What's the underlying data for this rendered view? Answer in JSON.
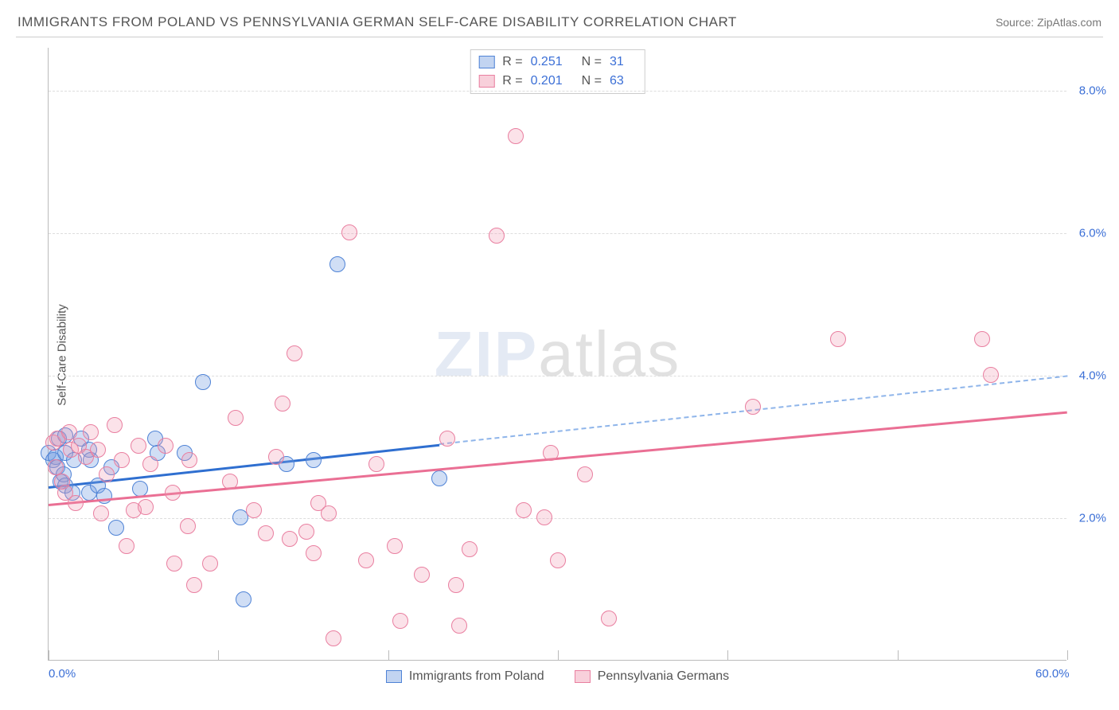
{
  "title": "IMMIGRANTS FROM POLAND VS PENNSYLVANIA GERMAN SELF-CARE DISABILITY CORRELATION CHART",
  "source_label": "Source: ZipAtlas.com",
  "ylabel": "Self-Care Disability",
  "watermark_a": "ZIP",
  "watermark_b": "atlas",
  "chart": {
    "type": "scatter",
    "xlim": [
      0,
      60
    ],
    "ylim": [
      0,
      8.6
    ],
    "x_ticks": [
      0,
      10,
      20,
      30,
      40,
      50,
      60
    ],
    "x_tick_labels": {
      "0": "0.0%",
      "60": "60.0%"
    },
    "y_ticks": [
      2,
      4,
      6,
      8
    ],
    "y_tick_labels": {
      "2": "2.0%",
      "4": "4.0%",
      "6": "6.0%",
      "8": "8.0%"
    },
    "background_color": "#ffffff",
    "grid_color": "#dddddd",
    "axis_color": "#bbbbbb",
    "tick_label_color": "#3b6fd6",
    "marker_radius": 10,
    "series": [
      {
        "name": "Immigrants from Poland",
        "key": "blue",
        "fill": "rgba(120,160,225,0.35)",
        "stroke": "#4f83d6",
        "r_label": "R =",
        "r_value": "0.251",
        "n_label": "N =",
        "n_value": "31",
        "trend": {
          "y_at_x0": 2.45,
          "y_at_x60": 4.0,
          "solid_until_x": 23,
          "solid_color": "#2f6fd0",
          "dash_color": "#8fb5ea"
        },
        "points": [
          [
            0.0,
            2.9
          ],
          [
            0.3,
            2.8
          ],
          [
            0.4,
            2.85
          ],
          [
            0.5,
            2.7
          ],
          [
            0.6,
            3.1
          ],
          [
            0.7,
            2.5
          ],
          [
            0.9,
            2.6
          ],
          [
            1.0,
            2.9
          ],
          [
            1.0,
            2.45
          ],
          [
            1.0,
            3.15
          ],
          [
            1.4,
            2.35
          ],
          [
            1.5,
            2.8
          ],
          [
            1.9,
            3.1
          ],
          [
            2.4,
            2.35
          ],
          [
            2.4,
            2.95
          ],
          [
            2.5,
            2.8
          ],
          [
            2.9,
            2.45
          ],
          [
            3.3,
            2.3
          ],
          [
            3.7,
            2.7
          ],
          [
            4.0,
            1.85
          ],
          [
            5.4,
            2.4
          ],
          [
            6.3,
            3.1
          ],
          [
            6.4,
            2.9
          ],
          [
            8.0,
            2.9
          ],
          [
            9.1,
            3.9
          ],
          [
            11.3,
            2.0
          ],
          [
            11.5,
            0.85
          ],
          [
            14.0,
            2.75
          ],
          [
            15.6,
            2.8
          ],
          [
            17.0,
            5.55
          ],
          [
            23.0,
            2.55
          ]
        ]
      },
      {
        "name": "Pennsylvania Germans",
        "key": "pink",
        "fill": "rgba(240,150,175,0.28)",
        "stroke": "#e97fa0",
        "r_label": "R =",
        "r_value": "0.201",
        "n_label": "N =",
        "n_value": "63",
        "trend": {
          "y_at_x0": 2.2,
          "y_at_x60": 3.5,
          "solid_until_x": 60,
          "solid_color": "#ea6f94"
        },
        "points": [
          [
            0.3,
            3.05
          ],
          [
            0.4,
            2.7
          ],
          [
            0.5,
            3.1
          ],
          [
            0.8,
            2.5
          ],
          [
            1.0,
            2.35
          ],
          [
            1.2,
            3.2
          ],
          [
            1.3,
            2.95
          ],
          [
            1.6,
            2.2
          ],
          [
            1.8,
            3.0
          ],
          [
            2.2,
            2.85
          ],
          [
            2.5,
            3.2
          ],
          [
            2.9,
            2.95
          ],
          [
            3.1,
            2.05
          ],
          [
            3.4,
            2.6
          ],
          [
            3.9,
            3.3
          ],
          [
            4.3,
            2.8
          ],
          [
            4.6,
            1.6
          ],
          [
            5.0,
            2.1
          ],
          [
            5.3,
            3.0
          ],
          [
            5.7,
            2.15
          ],
          [
            6.0,
            2.75
          ],
          [
            6.9,
            3.0
          ],
          [
            7.3,
            2.35
          ],
          [
            7.4,
            1.35
          ],
          [
            8.2,
            1.88
          ],
          [
            8.3,
            2.8
          ],
          [
            8.6,
            1.05
          ],
          [
            9.5,
            1.35
          ],
          [
            10.7,
            2.5
          ],
          [
            11.0,
            3.4
          ],
          [
            12.1,
            2.1
          ],
          [
            12.8,
            1.78
          ],
          [
            13.4,
            2.85
          ],
          [
            13.8,
            3.6
          ],
          [
            14.2,
            1.7
          ],
          [
            14.5,
            4.3
          ],
          [
            15.2,
            1.8
          ],
          [
            15.6,
            1.5
          ],
          [
            15.9,
            2.2
          ],
          [
            16.5,
            2.05
          ],
          [
            16.8,
            0.3
          ],
          [
            17.7,
            6.0
          ],
          [
            18.7,
            1.4
          ],
          [
            19.3,
            2.75
          ],
          [
            20.4,
            1.6
          ],
          [
            20.7,
            0.55
          ],
          [
            22.0,
            1.2
          ],
          [
            23.5,
            3.1
          ],
          [
            24.0,
            1.05
          ],
          [
            24.2,
            0.48
          ],
          [
            24.8,
            1.55
          ],
          [
            26.4,
            5.95
          ],
          [
            27.5,
            7.35
          ],
          [
            28.0,
            2.1
          ],
          [
            29.2,
            2.0
          ],
          [
            29.6,
            2.9
          ],
          [
            30.0,
            1.4
          ],
          [
            31.6,
            2.6
          ],
          [
            33.0,
            0.58
          ],
          [
            41.5,
            3.55
          ],
          [
            46.5,
            4.5
          ],
          [
            55.0,
            4.5
          ],
          [
            55.5,
            4.0
          ]
        ]
      }
    ]
  },
  "legend_bottom": [
    {
      "swatch": "blue",
      "label": "Immigrants from Poland"
    },
    {
      "swatch": "pink",
      "label": "Pennsylvania Germans"
    }
  ]
}
